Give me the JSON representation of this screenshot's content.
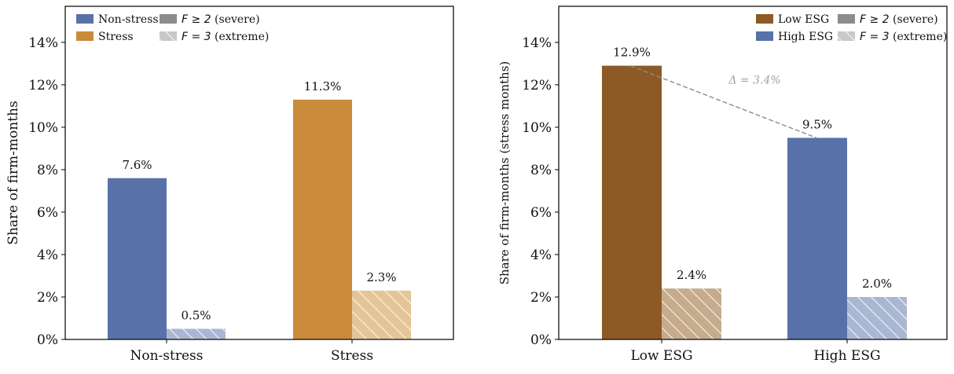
{
  "chart_data": [
    {
      "type": "bar",
      "categories": [
        "Non-stress",
        "Stress"
      ],
      "ylabel": "Share of firm-months",
      "xlabel": "",
      "ylim": [
        0,
        15.7
      ],
      "yticks": [
        0,
        2,
        4,
        6,
        8,
        10,
        12,
        14
      ],
      "ytick_suffix": "%",
      "grid": false,
      "legend_position": "top-left",
      "legend": [
        {
          "label": "Non-stress",
          "color": "#5872a9",
          "hatch": false
        },
        {
          "label": "Stress",
          "color": "#cb8b3c",
          "hatch": false
        },
        {
          "label": "F ≥ 2 (severe)",
          "color": "#8c8c8c",
          "hatch": false
        },
        {
          "label": "F = 3 (extreme)",
          "color": "#c8c8c8",
          "hatch": true
        }
      ],
      "series": [
        {
          "values": [
            7.6,
            11.3
          ],
          "labels": [
            "7.6%",
            "11.3%"
          ],
          "colors": [
            "#5872a9",
            "#cb8b3c"
          ],
          "hatch": false
        },
        {
          "values": [
            0.5,
            2.3
          ],
          "labels": [
            "0.5%",
            "2.3%"
          ],
          "colors": [
            "#aab7d3",
            "#e4c596"
          ],
          "hatch": true
        }
      ]
    },
    {
      "type": "bar",
      "categories": [
        "Low ESG",
        "High ESG"
      ],
      "ylabel": "Share of firm-months (stress months)",
      "xlabel": "",
      "ylim": [
        0,
        15.7
      ],
      "yticks": [
        0,
        2,
        4,
        6,
        8,
        10,
        12,
        14
      ],
      "ytick_suffix": "%",
      "grid": false,
      "legend_position": "top-right",
      "legend": [
        {
          "label": "Low ESG",
          "color": "#8d5a26",
          "hatch": false
        },
        {
          "label": "High ESG",
          "color": "#5872a9",
          "hatch": false
        },
        {
          "label": "F ≥ 2 (severe)",
          "color": "#8c8c8c",
          "hatch": false
        },
        {
          "label": "F = 3 (extreme)",
          "color": "#c8c8c8",
          "hatch": true
        }
      ],
      "series": [
        {
          "values": [
            12.9,
            9.5
          ],
          "labels": [
            "12.9%",
            "9.5%"
          ],
          "colors": [
            "#8d5a26",
            "#5872a9"
          ],
          "hatch": false
        },
        {
          "values": [
            2.4,
            2.0
          ],
          "labels": [
            "2.4%",
            "2.0%"
          ],
          "colors": [
            "#c6ab8c",
            "#aab7d3"
          ],
          "hatch": true
        }
      ],
      "annotation": {
        "text": "Δ = 3.4%",
        "from": [
          0,
          12.9
        ],
        "to": [
          1,
          9.5
        ]
      }
    }
  ]
}
